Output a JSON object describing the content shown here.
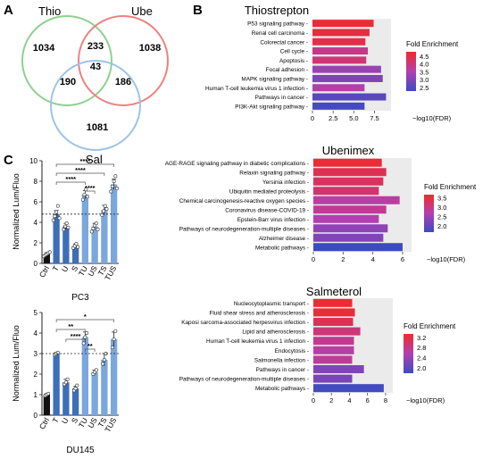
{
  "panel_labels": [
    "A",
    "B",
    "C"
  ],
  "colors": {
    "thio_circle": "#8fd08f",
    "ube_circle": "#f08080",
    "sal_circle": "#9cc3e6",
    "fold_low": "#3b4cc0",
    "fold_mid": "#b33fb0",
    "fold_high": "#f02a2a",
    "panel_bg": "#ebebeb",
    "bar_ctrl": "#111111",
    "bar_single": "#3d6fb6",
    "bar_combo": "#7aa7dc"
  },
  "chart_data": [
    {
      "type": "venn",
      "sets": [
        "Thio",
        "Ube",
        "Sal"
      ],
      "regions": {
        "Thio_only": 1034,
        "Ube_only": 1038,
        "Sal_only": 1081,
        "Thio_Ube": 233,
        "Thio_Sal": 190,
        "Ube_Sal": 186,
        "all": 43
      }
    },
    {
      "type": "bar",
      "orientation": "horizontal",
      "title": "Thiostrepton",
      "xlabel": "−log10(FDR)",
      "xticks": [
        "0",
        "2.5",
        "5.0",
        "7.5"
      ],
      "xlim": [
        0,
        9.5
      ],
      "categories": [
        "P53 signaling pathway",
        "Renal cell carcinoma",
        "Colorectal cancer",
        "Cell cycle",
        "Apoptosis",
        "Focal adhesion",
        "MAPK signaling pathway",
        "Human T-cell leukemia virus 1 infection",
        "Pathways in cancer",
        "PI3K-Akt signaling pathway"
      ],
      "values": [
        7.4,
        6.9,
        6.4,
        6.7,
        6.5,
        8.3,
        8.5,
        6.3,
        8.9,
        6.3
      ],
      "fold_enrichment": [
        4.7,
        4.6,
        4.5,
        3.9,
        4.1,
        3.3,
        3.0,
        3.6,
        2.6,
        2.4
      ],
      "legend": {
        "title": "Fold Enrichment",
        "ticks": [
          "2.5",
          "3.0",
          "3.5",
          "4.0",
          "4.5"
        ],
        "range": [
          2.3,
          4.8
        ]
      }
    },
    {
      "type": "bar",
      "orientation": "horizontal",
      "title": "Ubenimex",
      "xlabel": "−log10(FDR)",
      "xticks": [
        "0",
        "2",
        "4",
        "6"
      ],
      "xlim": [
        0,
        6.6
      ],
      "categories": [
        "AGE-RAGE signaling pathway in diabetic complications",
        "Relaxin signaling pathway",
        "Yersinia infection",
        "Ubiquitin mediated proteolysis",
        "Chemical carcinogenesis-reactive oxygen species",
        "Coronavirus disease-COVID-19",
        "Epstein-Barr virus infection",
        "Pathways of neurodegeneration-multiple diseases",
        "Alzheimer disease",
        "Metabolic pathways"
      ],
      "values": [
        4.6,
        4.9,
        4.7,
        4.4,
        5.8,
        4.9,
        4.4,
        5.0,
        4.7,
        6.0
      ],
      "fold_enrichment": [
        3.6,
        3.4,
        3.3,
        3.2,
        2.8,
        2.9,
        2.7,
        2.4,
        2.3,
        1.7
      ],
      "legend": {
        "title": "Fold Enrichment",
        "ticks": [
          "2.0",
          "2.5",
          "3.0",
          "3.5"
        ],
        "range": [
          1.7,
          3.7
        ]
      }
    },
    {
      "type": "bar",
      "orientation": "horizontal",
      "title": "Salmeterol",
      "xlabel": "−log10(FDR)",
      "xticks": [
        "0",
        "2",
        "4",
        "6",
        "8"
      ],
      "xlim": [
        0,
        8.8
      ],
      "categories": [
        "Nucleocytoplasmic transport",
        "Fluid shear stress and atherosclerosis",
        "Kaposi sarcoma-associated herpesvirus infection",
        "Lipid and atherosclerosis",
        "Human T-cell leukemia virus 1 infection",
        "Endocytosis",
        "Salmonella infection",
        "Pathways in cancer",
        "Pathways of neurodegeneration-multiple diseases",
        "Metabolic pathways"
      ],
      "values": [
        4.3,
        4.6,
        4.4,
        5.2,
        4.5,
        4.5,
        4.3,
        5.6,
        4.3,
        7.8
      ],
      "fold_enrichment": [
        3.3,
        3.25,
        3.1,
        2.9,
        2.75,
        2.65,
        2.7,
        2.25,
        2.2,
        1.85
      ],
      "legend": {
        "title": "Fold Enrichment",
        "ticks": [
          "2.0",
          "2.4",
          "2.8",
          "3.2"
        ],
        "range": [
          1.8,
          3.35
        ]
      }
    },
    {
      "type": "bar",
      "title": "PC3",
      "ylabel": "Normalized Lum/Fluo",
      "categories": [
        "Ctrl",
        "T",
        "U",
        "S",
        "TU",
        "US",
        "TS",
        "TUS"
      ],
      "values": [
        0.9,
        4.8,
        3.6,
        1.7,
        6.7,
        3.6,
        5.2,
        7.7
      ],
      "errors": [
        0.15,
        0.35,
        0.3,
        0.2,
        0.4,
        0.3,
        0.45,
        0.5
      ],
      "points": [
        [
          0.7,
          0.8,
          0.9,
          1.0,
          1.1
        ],
        [
          4.2,
          4.6,
          5.0,
          5.6,
          4.4
        ],
        [
          3.3,
          3.6,
          3.9,
          3.5
        ],
        [
          1.5,
          1.7,
          1.9,
          1.6
        ],
        [
          6.2,
          6.7,
          7.2,
          6.5
        ],
        [
          3.1,
          3.4,
          3.7,
          3.9,
          3.3
        ],
        [
          4.7,
          5.1,
          5.6,
          5.3
        ],
        [
          7.0,
          7.5,
          8.0,
          8.5,
          7.3
        ]
      ],
      "ylim": [
        0,
        10
      ],
      "yticks": [
        "0",
        "2",
        "4",
        "6",
        "8",
        "10"
      ],
      "dashed_reference": 4.8,
      "significance": [
        {
          "from": "T",
          "to": "TUS",
          "label": "****"
        },
        {
          "from": "T",
          "to": "TS",
          "label": "****"
        },
        {
          "from": "T",
          "to": "TU",
          "label": "****"
        },
        {
          "from": "TU",
          "to": "US",
          "label": "****"
        }
      ]
    },
    {
      "type": "bar",
      "title": "DU145",
      "ylabel": "Normalized Lum/Fluo",
      "categories": [
        "Ctrl",
        "T",
        "U",
        "S",
        "TU",
        "US",
        "TS",
        "TUS"
      ],
      "values": [
        1.0,
        3.0,
        1.6,
        1.3,
        3.8,
        2.1,
        2.7,
        3.7
      ],
      "errors": [
        0.05,
        0.05,
        0.15,
        0.1,
        0.25,
        0.1,
        0.3,
        0.35
      ],
      "points": [
        [
          0.95,
          1.0,
          1.05
        ],
        [
          2.95,
          3.0,
          3.05
        ],
        [
          1.5,
          1.6,
          1.75
        ],
        [
          1.2,
          1.3,
          1.45
        ],
        [
          3.5,
          3.8,
          4.0
        ],
        [
          2.0,
          2.1,
          2.2
        ],
        [
          2.5,
          2.7,
          3.0
        ],
        [
          3.3,
          3.7,
          4.1
        ]
      ],
      "ylim": [
        0,
        5
      ],
      "yticks": [
        "0",
        "1",
        "2",
        "3",
        "4",
        "5"
      ],
      "dashed_reference": 3.0,
      "significance": [
        {
          "from": "T",
          "to": "TUS",
          "label": "*"
        },
        {
          "from": "T",
          "to": "TU",
          "label": "**"
        },
        {
          "from": "U",
          "to": "TU",
          "label": "****"
        },
        {
          "from": "TU",
          "to": "US",
          "label": "**"
        }
      ]
    }
  ]
}
